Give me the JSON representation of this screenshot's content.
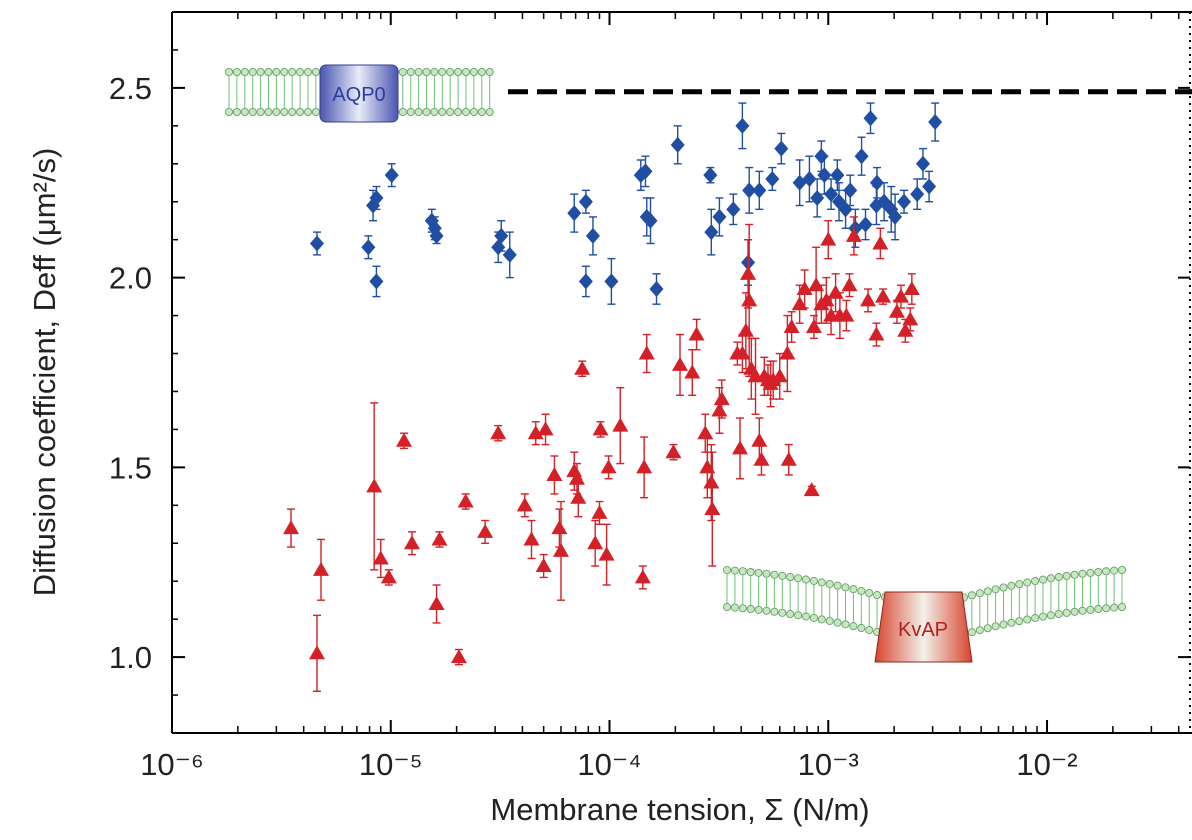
{
  "chart_data": {
    "type": "scatter",
    "x_label": "Membrane tension, Σ (N/m)",
    "y_label": "Diffusion coefficient, Deff (μm²/s)",
    "log_x": true,
    "xlim": [
      1e-06,
      0.046
    ],
    "ylim": [
      0.8,
      2.7
    ],
    "xticks": [
      {
        "value": 1e-06,
        "label": "10⁻⁶"
      },
      {
        "value": 1e-05,
        "label": "10⁻⁵"
      },
      {
        "value": 0.0001,
        "label": "10⁻⁴"
      },
      {
        "value": 0.001,
        "label": "10⁻³"
      },
      {
        "value": 0.01,
        "label": "10⁻²"
      }
    ],
    "yticks": [
      {
        "value": 1,
        "label": "1.0"
      },
      1.5,
      {
        "value": 2,
        "label": "2.0"
      },
      2.5
    ],
    "reference_y": 2.49,
    "series": [
      {
        "name": "AQP0",
        "color": "#1f4ea3",
        "marker": "diamond",
        "x": [
          4.6e-06,
          8.6e-06,
          8.6e-06,
          8.3e-06,
          7.9e-06,
          1.01e-05,
          1.54e-05,
          1.59e-05,
          1.62e-05,
          3.2e-05,
          3.1e-05,
          3.5e-05,
          7.8e-05,
          6.9e-05,
          8.4e-05,
          7.8e-05,
          0.000102,
          0.000139,
          0.000146,
          0.000148,
          0.000154,
          0.000164,
          0.000205,
          0.000289,
          0.000292,
          0.000318,
          0.000368,
          0.000405,
          0.000435,
          0.00043,
          0.000484,
          0.000555,
          0.00061,
          0.00074,
          0.00082,
          0.00089,
          0.00093,
          0.00096,
          0.00103,
          0.0011,
          0.00112,
          0.0012,
          0.00126,
          0.00133,
          0.00142,
          0.00148,
          0.00156,
          0.00167,
          0.00166,
          0.0018,
          0.00194,
          0.00202,
          0.00222,
          0.00255,
          0.00271,
          0.00289,
          0.00308
        ],
        "values": [
          2.09,
          2.21,
          1.99,
          2.19,
          2.08,
          2.27,
          2.15,
          2.13,
          2.11,
          2.11,
          2.08,
          2.06,
          2.2,
          2.17,
          2.11,
          1.99,
          1.99,
          2.27,
          2.28,
          2.16,
          2.15,
          1.97,
          2.35,
          2.27,
          2.12,
          2.16,
          2.18,
          2.4,
          2.23,
          2.04,
          2.23,
          2.26,
          2.34,
          2.25,
          2.26,
          2.21,
          2.32,
          2.27,
          2.22,
          2.27,
          2.2,
          2.18,
          2.23,
          2.13,
          2.32,
          2.14,
          2.42,
          2.25,
          2.19,
          2.2,
          2.18,
          2.16,
          2.2,
          2.22,
          2.3,
          2.24,
          2.41
        ],
        "errors": [
          0.03,
          0.03,
          0.04,
          0.04,
          0.03,
          0.03,
          0.03,
          0.03,
          0.02,
          0.04,
          0.04,
          0.06,
          0.03,
          0.05,
          0.05,
          0.04,
          0.06,
          0.04,
          0.04,
          0.05,
          0.06,
          0.04,
          0.05,
          0.02,
          0.06,
          0.05,
          0.04,
          0.06,
          0.06,
          0.06,
          0.05,
          0.03,
          0.04,
          0.06,
          0.06,
          0.05,
          0.04,
          0.05,
          0.04,
          0.04,
          0.05,
          0.05,
          0.04,
          0.05,
          0.05,
          0.04,
          0.04,
          0.04,
          0.05,
          0.05,
          0.06,
          0.06,
          0.03,
          0.04,
          0.04,
          0.04,
          0.05
        ]
      },
      {
        "name": "KvAP",
        "color": "#d42027",
        "marker": "triangle",
        "x": [
          3.5e-06,
          4.8e-06,
          4.6e-06,
          8.4e-06,
          9e-06,
          9.8e-06,
          1.15e-05,
          1.25e-05,
          1.67e-05,
          1.62e-05,
          2.05e-05,
          2.2e-05,
          2.7e-05,
          3.1e-05,
          4.1e-05,
          4.4e-05,
          4.6e-05,
          5.1e-05,
          5e-05,
          5.6e-05,
          5.9e-05,
          6e-05,
          6.9e-05,
          7.1e-05,
          7.2e-05,
          7.5e-05,
          8.6e-05,
          9e-05,
          9.1e-05,
          9.9e-05,
          9.7e-05,
          0.000112,
          0.000142,
          0.000144,
          0.000148,
          0.000196,
          0.00021,
          0.000239,
          0.00025,
          0.000274,
          0.00028,
          0.000292,
          0.000295,
          0.000318,
          0.000326,
          0.000384,
          0.000395,
          0.000405,
          0.00042,
          0.00043,
          0.000435,
          0.000445,
          0.000465,
          0.000484,
          0.000495,
          0.00051,
          0.00053,
          0.000545,
          0.00056,
          0.0006,
          0.00065,
          0.00066,
          0.00068,
          0.00074,
          0.00078,
          0.00084,
          0.00086,
          0.00088,
          0.00093,
          0.00098,
          0.001,
          0.00103,
          0.00108,
          0.00113,
          0.00121,
          0.00125,
          0.00131,
          0.00152,
          0.00166,
          0.00173,
          0.00178,
          0.00206,
          0.00215,
          0.00225,
          0.00237,
          0.00241
        ],
        "values": [
          1.34,
          1.23,
          1.01,
          1.45,
          1.26,
          1.21,
          1.57,
          1.3,
          1.31,
          1.14,
          1.0,
          1.41,
          1.33,
          1.59,
          1.4,
          1.31,
          1.59,
          1.6,
          1.24,
          1.48,
          1.34,
          1.28,
          1.49,
          1.47,
          1.42,
          1.76,
          1.3,
          1.38,
          1.6,
          1.5,
          1.27,
          1.61,
          1.21,
          1.5,
          1.8,
          1.54,
          1.77,
          1.75,
          1.85,
          1.59,
          1.5,
          1.46,
          1.39,
          1.65,
          1.68,
          1.8,
          1.55,
          1.8,
          1.86,
          2.01,
          1.94,
          1.76,
          1.74,
          1.57,
          1.52,
          1.74,
          1.73,
          1.72,
          1.73,
          1.74,
          1.8,
          1.52,
          1.87,
          1.93,
          1.97,
          1.44,
          1.87,
          1.98,
          1.93,
          1.94,
          2.1,
          1.9,
          1.96,
          1.9,
          1.9,
          1.98,
          2.11,
          1.94,
          1.85,
          2.09,
          1.95,
          1.91,
          1.95,
          1.86,
          1.89,
          1.97
        ],
        "errors": [
          0.05,
          0.08,
          0.1,
          0.22,
          0.05,
          0.02,
          0.02,
          0.03,
          0.02,
          0.05,
          0.02,
          0.02,
          0.03,
          0.02,
          0.03,
          0.05,
          0.03,
          0.04,
          0.03,
          0.05,
          0.05,
          0.13,
          0.05,
          0.04,
          0.05,
          0.02,
          0.06,
          0.03,
          0.02,
          0.03,
          0.08,
          0.1,
          0.03,
          0.08,
          0.05,
          0.02,
          0.08,
          0.06,
          0.04,
          0.05,
          0.08,
          0.1,
          0.15,
          0.06,
          0.05,
          0.03,
          0.08,
          0.05,
          0.1,
          0.09,
          0.2,
          0.08,
          0.1,
          0.06,
          0.04,
          0.05,
          0.04,
          0.06,
          0.05,
          0.06,
          0.1,
          0.04,
          0.04,
          0.05,
          0.05,
          0.01,
          0.03,
          0.1,
          0.05,
          0.06,
          0.05,
          0.05,
          0.05,
          0.06,
          0.04,
          0.03,
          0.05,
          0.03,
          0.03,
          0.04,
          0.02,
          0.03,
          0.03,
          0.03,
          0.03,
          0.04
        ]
      }
    ]
  }
}
